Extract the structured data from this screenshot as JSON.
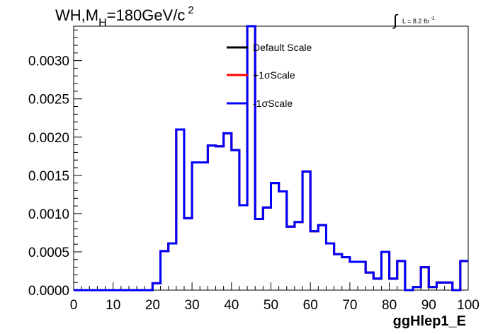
{
  "header": {
    "title_main": "WH,M",
    "title_sub": "H",
    "title_rest": "=180GeV/c",
    "title_sup": "2",
    "lumi_text": "L = 8.2 fb",
    "lumi_sup": "-1"
  },
  "chart_data": {
    "type": "line",
    "style": "step-histogram",
    "xlabel": "ggHlep1_E",
    "ylabel": "",
    "xlim": [
      0,
      100
    ],
    "ylim": [
      0,
      0.00345
    ],
    "grid": false,
    "legend_position": "top-center",
    "x_ticks": [
      "0",
      "10",
      "20",
      "30",
      "40",
      "50",
      "60",
      "70",
      "80",
      "90",
      "100"
    ],
    "y_ticks": [
      "0.0000",
      "0.0005",
      "0.0010",
      "0.0015",
      "0.0020",
      "0.0025",
      "0.0030"
    ],
    "bin_edges": [
      0,
      2,
      4,
      6,
      8,
      10,
      12,
      14,
      16,
      18,
      20,
      22,
      24,
      26,
      28,
      30,
      32,
      34,
      36,
      38,
      40,
      42,
      44,
      46,
      48,
      50,
      52,
      54,
      56,
      58,
      60,
      62,
      64,
      66,
      68,
      70,
      72,
      74,
      76,
      78,
      80,
      82,
      84,
      86,
      88,
      90,
      92,
      94,
      96,
      98,
      100
    ],
    "series": [
      {
        "name": "Default Scale",
        "color": "#000000",
        "values": [
          0,
          0,
          0,
          0,
          0,
          0,
          0,
          0,
          0,
          0,
          9e-05,
          0.00051,
          0.00061,
          0.0021,
          0.00094,
          0.00167,
          0.00167,
          0.00189,
          0.00188,
          0.00205,
          0.00183,
          0.00111,
          0.00345,
          0.00093,
          0.00108,
          0.0014,
          0.00129,
          0.00083,
          0.00089,
          0.00155,
          0.00077,
          0.00085,
          0.00061,
          0.00047,
          0.00043,
          0.00037,
          0.00037,
          0.00023,
          0.00015,
          0.0005,
          0.00015,
          0.00038,
          0,
          4e-05,
          0.0003,
          4e-05,
          0.0001,
          0.0001,
          0,
          0.00038
        ]
      },
      {
        "name": "+1σScale",
        "color": "#ff0000",
        "values": [
          0,
          0,
          0,
          0,
          0,
          0,
          0,
          0,
          0,
          0,
          9e-05,
          0.00051,
          0.00061,
          0.0021,
          0.00094,
          0.00167,
          0.00167,
          0.00189,
          0.00188,
          0.00205,
          0.00183,
          0.00111,
          0.00345,
          0.00093,
          0.00108,
          0.0014,
          0.00129,
          0.00083,
          0.00089,
          0.00155,
          0.00077,
          0.00085,
          0.00061,
          0.00047,
          0.00043,
          0.00037,
          0.00037,
          0.00023,
          0.00015,
          0.0005,
          0.00015,
          0.00038,
          0,
          4e-05,
          0.0003,
          4e-05,
          0.0001,
          0.0001,
          0,
          0.00038
        ]
      },
      {
        "name": "-1σScale",
        "color": "#0000ff",
        "values": [
          0,
          0,
          0,
          0,
          0,
          0,
          0,
          0,
          0,
          0,
          9e-05,
          0.00051,
          0.00061,
          0.0021,
          0.00094,
          0.00167,
          0.00167,
          0.00189,
          0.00188,
          0.00205,
          0.00183,
          0.00111,
          0.00345,
          0.00093,
          0.00108,
          0.0014,
          0.00129,
          0.00083,
          0.00089,
          0.00155,
          0.00077,
          0.00085,
          0.00061,
          0.00047,
          0.00043,
          0.00037,
          0.00037,
          0.00023,
          0.00015,
          0.0005,
          0.00015,
          0.00038,
          0,
          4e-05,
          0.0003,
          4e-05,
          0.0001,
          0.0001,
          0,
          0.00038
        ]
      }
    ]
  }
}
